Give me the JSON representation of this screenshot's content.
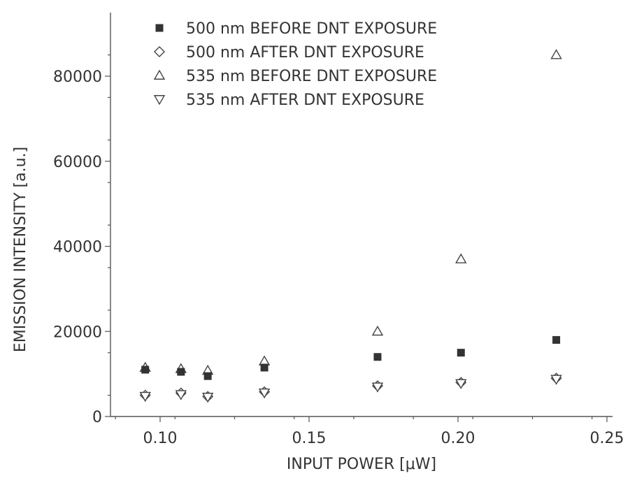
{
  "chart_data": {
    "type": "scatter",
    "xlabel": "INPUT POWER [μW]",
    "ylabel": "EMISSION INTENSITY [a.u.]",
    "xlim": [
      0.08,
      0.25
    ],
    "ylim": [
      0,
      95000
    ],
    "xticks": [
      0.1,
      0.15,
      0.2,
      0.25
    ],
    "xtick_labels": [
      "0.10",
      "0.15",
      "0.20",
      "0.25"
    ],
    "yticks": [
      0,
      20000,
      40000,
      60000,
      80000
    ],
    "ytick_labels": [
      "0",
      "20000",
      "40000",
      "60000",
      "80000"
    ],
    "grid": false,
    "legend_position": "top-left",
    "x": [
      0.095,
      0.107,
      0.116,
      0.135,
      0.173,
      0.201,
      0.233
    ],
    "series": [
      {
        "name": "500 nm BEFORE DNT EXPOSURE",
        "marker": "filled-square",
        "values": [
          11000,
          10500,
          9500,
          11500,
          14000,
          15000,
          18000
        ]
      },
      {
        "name": "500 nm AFTER DNT EXPOSURE",
        "marker": "open-diamond",
        "values": [
          5000,
          5500,
          4700,
          5800,
          7200,
          8000,
          9000
        ]
      },
      {
        "name": "535 nm BEFORE DNT EXPOSURE",
        "marker": "open-triangle-up",
        "values": [
          11500,
          11200,
          10800,
          13000,
          20000,
          37000,
          85000
        ]
      },
      {
        "name": "535 nm AFTER DNT EXPOSURE",
        "marker": "open-triangle-down",
        "values": [
          4800,
          5200,
          4600,
          5600,
          7000,
          7800,
          8800
        ]
      }
    ],
    "colors": {
      "marker_stroke": "#444444",
      "marker_fill": "#333333",
      "axis": "#555555",
      "text": "#333333"
    }
  }
}
